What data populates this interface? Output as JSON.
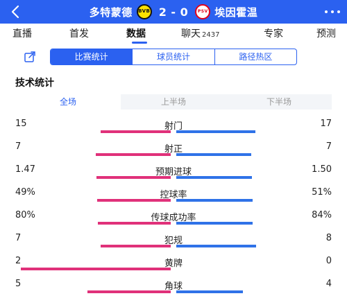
{
  "header": {
    "home_team": "多特蒙德",
    "away_team": "埃因霍温",
    "score": "2 - 0",
    "home_logo_icon": "bvb-logo-icon",
    "away_logo_icon": "psv-logo-icon",
    "home_logo_text": "BVB",
    "away_logo_text": "PSV"
  },
  "nav": {
    "tabs": [
      {
        "label": "直播",
        "active": false
      },
      {
        "label": "首发",
        "active": false
      },
      {
        "label": "数据",
        "active": true
      },
      {
        "label": "聊天",
        "count": "2437",
        "active": false
      },
      {
        "label": "专家",
        "active": false
      },
      {
        "label": "预测",
        "active": false
      }
    ]
  },
  "sub_tabs": [
    {
      "label": "比赛统计",
      "active": true
    },
    {
      "label": "球员统计",
      "active": false
    },
    {
      "label": "路径热区",
      "active": false
    }
  ],
  "section_title": "技术统计",
  "period_tabs": [
    {
      "label": "全场",
      "active": true
    },
    {
      "label": "上半场",
      "active": false
    },
    {
      "label": "下半场",
      "active": false
    }
  ],
  "stats": [
    {
      "name": "射门",
      "left": "15",
      "right": "17",
      "left_share": 0.469,
      "right_share": 0.531
    },
    {
      "name": "射正",
      "left": "7",
      "right": "7",
      "left_share": 0.5,
      "right_share": 0.5
    },
    {
      "name": "预期进球",
      "left": "1.47",
      "right": "1.50",
      "left_share": 0.495,
      "right_share": 0.505
    },
    {
      "name": "控球率",
      "left": "49%",
      "right": "51%",
      "left_share": 0.49,
      "right_share": 0.51
    },
    {
      "name": "传球成功率",
      "left": "80%",
      "right": "84%",
      "left_share": 0.488,
      "right_share": 0.512
    },
    {
      "name": "犯规",
      "left": "7",
      "right": "8",
      "left_share": 0.467,
      "right_share": 0.533
    },
    {
      "name": "黄牌",
      "left": "2",
      "right": "0",
      "left_share": 1.0,
      "right_share": 0.0
    },
    {
      "name": "角球",
      "left": "5",
      "right": "4",
      "left_share": 0.556,
      "right_share": 0.444
    }
  ],
  "colors": {
    "accent": "#2b61f0",
    "home_bar": "#e0317a",
    "away_bar": "#2f72e8"
  }
}
